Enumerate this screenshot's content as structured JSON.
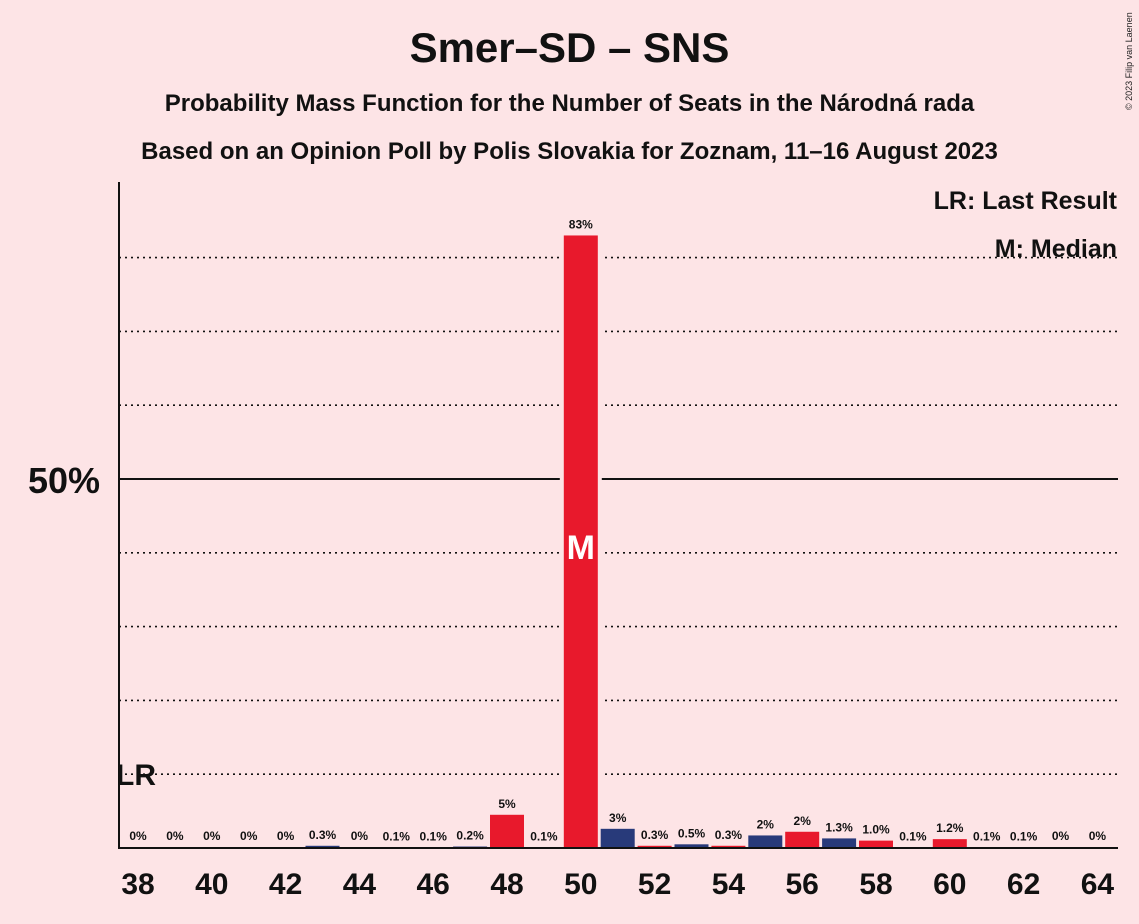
{
  "title": "Smer–SD – SNS",
  "subtitle": "Probability Mass Function for the Number of Seats in the Národná rada",
  "subtitle2": "Based on an Opinion Poll by Polis Slovakia for Zoznam, 11–16 August 2023",
  "copyright": "© 2023 Filip van Laenen",
  "legend": {
    "last_result": "LR: Last Result",
    "median": "M: Median"
  },
  "colors": {
    "background": "#fde4e6",
    "red": "#e8192c",
    "navy": "#283a7a"
  },
  "chart_data": {
    "type": "bar",
    "x": [
      38,
      39,
      40,
      41,
      42,
      43,
      44,
      45,
      46,
      47,
      48,
      49,
      50,
      51,
      52,
      53,
      54,
      55,
      56,
      57,
      58,
      59,
      60,
      61,
      62,
      63,
      64
    ],
    "values": [
      0,
      0,
      0,
      0,
      0,
      0.3,
      0,
      0.1,
      0.1,
      0.2,
      4.5,
      0.1,
      83,
      2.6,
      0.3,
      0.5,
      0.3,
      1.7,
      2.2,
      1.3,
      1.0,
      0.1,
      1.2,
      0.1,
      0.1,
      0,
      0
    ],
    "labels": [
      "0%",
      "0%",
      "0%",
      "0%",
      "0%",
      "0.3%",
      "0%",
      "0.1%",
      "0.1%",
      "0.2%",
      "5%",
      "0.1%",
      "83%",
      "3%",
      "0.3%",
      "0.5%",
      "0.3%",
      "2%",
      "2%",
      "1.3%",
      "1.0%",
      "0.1%",
      "1.2%",
      "0.1%",
      "0.1%",
      "0%",
      "0%"
    ],
    "bar_colors": [
      "red",
      "navy",
      "red",
      "navy",
      "red",
      "navy",
      "red",
      "navy",
      "red",
      "navy",
      "red",
      "navy",
      "red",
      "navy",
      "red",
      "navy",
      "red",
      "navy",
      "red",
      "navy",
      "red",
      "navy",
      "red",
      "navy",
      "red",
      "navy",
      "red"
    ],
    "x_tick_labels": [
      "38",
      "40",
      "42",
      "44",
      "46",
      "48",
      "50",
      "52",
      "54",
      "56",
      "58",
      "60",
      "62",
      "64"
    ],
    "y_tick_label": "50%",
    "y_tick_value": 50,
    "ylim": [
      0,
      100
    ],
    "gridlines": [
      10,
      20,
      30,
      40,
      60,
      70,
      80
    ],
    "median": 50,
    "median_label": "M",
    "last_result": 38,
    "last_result_label": "LR"
  }
}
